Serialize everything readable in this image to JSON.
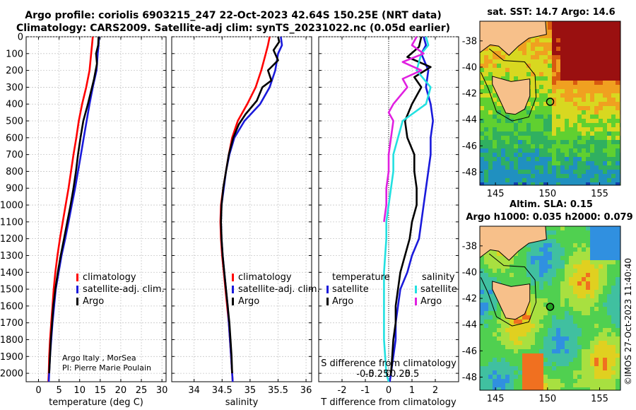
{
  "figure": {
    "title_line1": "Argo profile: coriolis 6903215_247 22-Oct-2023 42.64S 150.25E (NRT data)",
    "title_line2": "Climatology: CARS2009. Satellite-adj clim: synTS_20231022.nc (0.05d earlier)",
    "credit_line1": "Argo Italy , MorSea",
    "credit_line2": "PI: Pierre Marie Poulain",
    "stamp": "©IMOS 27-Oct-2023 11:40:40",
    "colors": {
      "climatology": "#ff0000",
      "satellite": "#1a1adb",
      "argo": "#000000",
      "temp_diff_sat": "#1a1adb",
      "sal_diff_sat": "#22e0e0",
      "sal_diff_argo": "#e020e0",
      "land": "#f7c08a"
    }
  },
  "chart_data": [
    {
      "type": "line",
      "id": "temperature",
      "xlabel": "temperature (deg C)",
      "ylabel": "",
      "xlim": [
        -3,
        31
      ],
      "ylim": [
        2050,
        0
      ],
      "xticks": [
        0,
        5,
        10,
        15,
        20,
        25,
        30
      ],
      "yticks": [
        0,
        100,
        200,
        300,
        400,
        500,
        600,
        700,
        800,
        900,
        1000,
        1100,
        1200,
        1300,
        1400,
        1500,
        1600,
        1700,
        1800,
        1900,
        2000
      ],
      "legend": [
        "climatology",
        "satellite-adj. clim.",
        "Argo"
      ],
      "legend_position": "lower-right",
      "series": [
        {
          "name": "climatology",
          "color": "#ff0000",
          "points": [
            [
              13.2,
              0
            ],
            [
              13.0,
              50
            ],
            [
              12.8,
              100
            ],
            [
              12.4,
              200
            ],
            [
              11.6,
              300
            ],
            [
              10.6,
              400
            ],
            [
              9.8,
              500
            ],
            [
              9.2,
              600
            ],
            [
              8.5,
              700
            ],
            [
              7.9,
              800
            ],
            [
              7.3,
              900
            ],
            [
              6.6,
              1000
            ],
            [
              5.9,
              1100
            ],
            [
              5.2,
              1200
            ],
            [
              4.6,
              1300
            ],
            [
              4.1,
              1400
            ],
            [
              3.7,
              1500
            ],
            [
              3.4,
              1600
            ],
            [
              3.1,
              1700
            ],
            [
              2.8,
              1800
            ],
            [
              2.6,
              1900
            ],
            [
              2.5,
              2000
            ],
            [
              2.4,
              2050
            ]
          ]
        },
        {
          "name": "satellite-adj. clim.",
          "color": "#1a1adb",
          "points": [
            [
              14.7,
              0
            ],
            [
              14.6,
              50
            ],
            [
              14.4,
              100
            ],
            [
              14.1,
              200
            ],
            [
              13.2,
              300
            ],
            [
              12.4,
              400
            ],
            [
              11.7,
              500
            ],
            [
              11.0,
              600
            ],
            [
              10.3,
              700
            ],
            [
              9.6,
              800
            ],
            [
              8.9,
              900
            ],
            [
              8.1,
              1000
            ],
            [
              7.3,
              1100
            ],
            [
              6.5,
              1200
            ],
            [
              5.6,
              1300
            ],
            [
              4.9,
              1400
            ],
            [
              4.2,
              1500
            ],
            [
              3.8,
              1600
            ],
            [
              3.4,
              1700
            ],
            [
              3.1,
              1800
            ],
            [
              2.8,
              1900
            ],
            [
              2.6,
              2000
            ],
            [
              2.5,
              2050
            ]
          ]
        },
        {
          "name": "Argo",
          "color": "#000000",
          "points": [
            [
              14.6,
              0
            ],
            [
              14.5,
              50
            ],
            [
              14.0,
              100
            ],
            [
              14.2,
              160
            ],
            [
              13.5,
              250
            ],
            [
              13.0,
              300
            ],
            [
              12.0,
              400
            ],
            [
              10.9,
              500
            ],
            [
              10.2,
              600
            ],
            [
              9.6,
              700
            ],
            [
              9.1,
              800
            ],
            [
              8.5,
              900
            ],
            [
              7.8,
              1000
            ],
            [
              7.0,
              1100
            ],
            [
              6.2,
              1200
            ],
            [
              5.4,
              1300
            ],
            [
              4.7,
              1400
            ],
            [
              4.1,
              1500
            ],
            [
              3.6,
              1600
            ],
            [
              3.3,
              1700
            ],
            [
              3.0,
              1800
            ],
            [
              2.8,
              1900
            ],
            [
              2.6,
              2000
            ]
          ]
        }
      ]
    },
    {
      "type": "line",
      "id": "salinity",
      "xlabel": "salinity",
      "xlim": [
        33.6,
        36.1
      ],
      "ylim": [
        2050,
        0
      ],
      "xticks": [
        34,
        34.5,
        35,
        35.5,
        36
      ],
      "legend": [
        "climatology",
        "satellite-adj. clim.",
        "Argo"
      ],
      "legend_position": "lower-right",
      "series": [
        {
          "name": "climatology",
          "color": "#ff0000",
          "points": [
            [
              35.35,
              0
            ],
            [
              35.32,
              50
            ],
            [
              35.28,
              100
            ],
            [
              35.2,
              200
            ],
            [
              35.1,
              300
            ],
            [
              34.95,
              400
            ],
            [
              34.78,
              500
            ],
            [
              34.68,
              600
            ],
            [
              34.62,
              700
            ],
            [
              34.57,
              800
            ],
            [
              34.52,
              900
            ],
            [
              34.48,
              1000
            ],
            [
              34.47,
              1100
            ],
            [
              34.48,
              1200
            ],
            [
              34.5,
              1300
            ],
            [
              34.53,
              1400
            ],
            [
              34.56,
              1500
            ],
            [
              34.59,
              1600
            ],
            [
              34.62,
              1700
            ],
            [
              34.64,
              1800
            ],
            [
              34.66,
              1900
            ],
            [
              34.68,
              2000
            ],
            [
              34.69,
              2050
            ]
          ]
        },
        {
          "name": "satellite-adj. clim.",
          "color": "#1a1adb",
          "points": [
            [
              35.55,
              0
            ],
            [
              35.57,
              50
            ],
            [
              35.5,
              100
            ],
            [
              35.45,
              200
            ],
            [
              35.35,
              300
            ],
            [
              35.18,
              400
            ],
            [
              34.9,
              500
            ],
            [
              34.72,
              600
            ],
            [
              34.63,
              700
            ],
            [
              34.57,
              800
            ],
            [
              34.53,
              900
            ],
            [
              34.49,
              1000
            ],
            [
              34.48,
              1100
            ],
            [
              34.49,
              1200
            ],
            [
              34.51,
              1300
            ],
            [
              34.54,
              1400
            ],
            [
              34.57,
              1500
            ],
            [
              34.6,
              1600
            ],
            [
              34.62,
              1700
            ],
            [
              34.64,
              1800
            ],
            [
              34.66,
              1900
            ],
            [
              34.68,
              2000
            ],
            [
              34.69,
              2050
            ]
          ]
        },
        {
          "name": "Argo",
          "color": "#000000",
          "points": [
            [
              35.5,
              0
            ],
            [
              35.52,
              30
            ],
            [
              35.42,
              80
            ],
            [
              35.5,
              140
            ],
            [
              35.32,
              200
            ],
            [
              35.38,
              260
            ],
            [
              35.22,
              300
            ],
            [
              35.12,
              380
            ],
            [
              34.92,
              460
            ],
            [
              34.8,
              520
            ],
            [
              34.7,
              600
            ],
            [
              34.62,
              700
            ],
            [
              34.57,
              800
            ],
            [
              34.52,
              900
            ],
            [
              34.49,
              1000
            ],
            [
              34.48,
              1100
            ],
            [
              34.49,
              1200
            ],
            [
              34.51,
              1300
            ],
            [
              34.54,
              1400
            ],
            [
              34.57,
              1500
            ],
            [
              34.6,
              1600
            ],
            [
              34.63,
              1700
            ],
            [
              34.65,
              1800
            ],
            [
              34.67,
              1900
            ],
            [
              34.68,
              2000
            ]
          ]
        }
      ]
    },
    {
      "type": "line",
      "id": "difference",
      "xlabel": "T difference from climatology",
      "xlabel_top": "S difference from climatology",
      "xlim": [
        -3,
        3
      ],
      "ylim": [
        2050,
        0
      ],
      "xticks": [
        -2,
        -1,
        0,
        1,
        2
      ],
      "xtick_labels": [
        "-2",
        "-1",
        "0",
        "1",
        "2"
      ],
      "sticks": [
        -0.5,
        -0.25,
        0,
        0.25,
        0.5
      ],
      "stick_labels": [
        "-0.5",
        "-0.25",
        "0",
        "0.25",
        "0.5"
      ],
      "legend_groups": [
        {
          "title": "temperature",
          "entries": [
            "satellite",
            "Argo"
          ]
        },
        {
          "title": "salinity",
          "entries": [
            "satellite",
            "Argo"
          ]
        }
      ],
      "series": [
        {
          "name": "satellite",
          "group": "temperature",
          "color": "#1a1adb",
          "points": [
            [
              1.5,
              0
            ],
            [
              1.6,
              50
            ],
            [
              1.4,
              100
            ],
            [
              1.7,
              200
            ],
            [
              1.6,
              300
            ],
            [
              1.8,
              400
            ],
            [
              1.9,
              500
            ],
            [
              1.8,
              600
            ],
            [
              1.8,
              700
            ],
            [
              1.7,
              800
            ],
            [
              1.6,
              900
            ],
            [
              1.5,
              1000
            ],
            [
              1.4,
              1100
            ],
            [
              1.3,
              1200
            ],
            [
              1.0,
              1300
            ],
            [
              0.8,
              1400
            ],
            [
              0.5,
              1500
            ],
            [
              0.4,
              1600
            ],
            [
              0.3,
              1700
            ],
            [
              0.3,
              1800
            ],
            [
              0.2,
              1900
            ],
            [
              0.1,
              2000
            ],
            [
              0.05,
              2050
            ]
          ]
        },
        {
          "name": "Argo",
          "group": "temperature",
          "color": "#000000",
          "points": [
            [
              1.4,
              0
            ],
            [
              1.3,
              60
            ],
            [
              0.8,
              120
            ],
            [
              1.8,
              180
            ],
            [
              1.1,
              240
            ],
            [
              1.4,
              300
            ],
            [
              1.0,
              400
            ],
            [
              0.7,
              500
            ],
            [
              0.8,
              600
            ],
            [
              1.1,
              700
            ],
            [
              1.1,
              800
            ],
            [
              1.2,
              900
            ],
            [
              1.2,
              1000
            ],
            [
              1.0,
              1100
            ],
            [
              0.9,
              1200
            ],
            [
              0.7,
              1300
            ],
            [
              0.5,
              1400
            ],
            [
              0.4,
              1500
            ],
            [
              0.3,
              1600
            ],
            [
              0.3,
              1700
            ],
            [
              0.2,
              1800
            ],
            [
              0.15,
              1900
            ],
            [
              0.1,
              2000
            ]
          ]
        },
        {
          "name": "satellite",
          "group": "salinity",
          "color": "#22e0e0",
          "points": [
            [
              0.8,
              0
            ],
            [
              0.85,
              50
            ],
            [
              0.7,
              100
            ],
            [
              0.6,
              200
            ],
            [
              0.9,
              300
            ],
            [
              0.8,
              400
            ],
            [
              0.3,
              500
            ],
            [
              0.2,
              600
            ],
            [
              0.1,
              700
            ],
            [
              0.1,
              800
            ],
            [
              0.05,
              900
            ],
            [
              0.0,
              1000
            ],
            [
              -0.05,
              1100
            ],
            [
              -0.05,
              1200
            ],
            [
              -0.1,
              1400
            ],
            [
              -0.1,
              1600
            ],
            [
              -0.1,
              1800
            ],
            [
              -0.05,
              2000
            ],
            [
              0.0,
              2050
            ]
          ]
        },
        {
          "name": "Argo",
          "group": "salinity",
          "color": "#e020e0",
          "points": [
            [
              0.6,
              0
            ],
            [
              0.5,
              50
            ],
            [
              0.75,
              100
            ],
            [
              0.3,
              150
            ],
            [
              0.7,
              200
            ],
            [
              0.3,
              250
            ],
            [
              0.4,
              300
            ],
            [
              0.1,
              400
            ],
            [
              0.0,
              450
            ],
            [
              0.1,
              500
            ],
            [
              0.05,
              600
            ],
            [
              0.0,
              700
            ],
            [
              0.0,
              800
            ],
            [
              -0.05,
              900
            ],
            [
              -0.05,
              1000
            ],
            [
              -0.1,
              1100
            ]
          ]
        }
      ]
    },
    {
      "type": "heatmap",
      "id": "sst_map",
      "title": "sat. SST: 14.7 Argo: 14.6",
      "xticks": [
        145,
        150,
        155
      ],
      "yticks": [
        -38,
        -40,
        -42,
        -44,
        -46,
        -48
      ],
      "xlim": [
        143.5,
        157
      ],
      "ylim": [
        -49,
        -36.5
      ],
      "float_position": [
        150.25,
        -42.64
      ]
    },
    {
      "type": "heatmap",
      "id": "sla_map",
      "title_line1": "Altim. SLA: 0.15",
      "title_line2": "Argo h1000: 0.035 h2000: 0.079",
      "xticks": [
        145,
        150,
        155
      ],
      "yticks": [
        -38,
        -40,
        -42,
        -44,
        -46,
        -48
      ],
      "xlim": [
        143.5,
        157
      ],
      "ylim": [
        -49,
        -36.5
      ],
      "float_position": [
        150.25,
        -42.64
      ]
    }
  ]
}
